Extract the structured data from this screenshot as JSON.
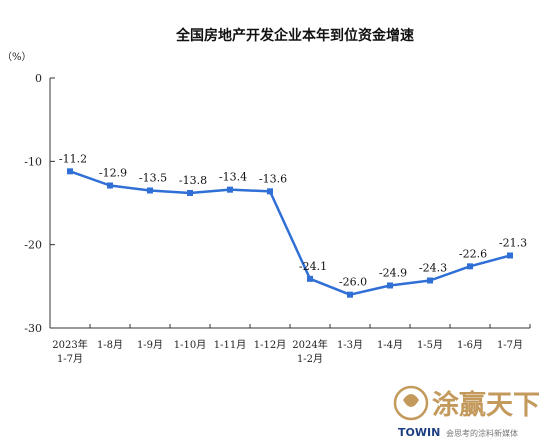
{
  "chart_data": {
    "type": "line",
    "title": "全国房地产开发企业本年到位资金增速",
    "yunit": "（%）",
    "ylim": [
      -30,
      0
    ],
    "yticks": [
      "0",
      "-10",
      "-20",
      "-30"
    ],
    "ytick_values": [
      0,
      -10,
      -20,
      -30
    ],
    "grid": false,
    "categories": [
      [
        "2023年",
        "1-7月"
      ],
      [
        "1-8月"
      ],
      [
        "1-9月"
      ],
      [
        "1-10月"
      ],
      [
        "1-11月"
      ],
      [
        "1-12月"
      ],
      [
        "2024年",
        "1-2月"
      ],
      [
        "1-3月"
      ],
      [
        "1-4月"
      ],
      [
        "1-5月"
      ],
      [
        "1-6月"
      ],
      [
        "1-7月"
      ]
    ],
    "series": [
      {
        "values": [
          -11.2,
          -12.9,
          -13.5,
          -13.8,
          -13.4,
          -13.6,
          -24.1,
          -26.0,
          -24.9,
          -24.3,
          -22.6,
          -21.3
        ],
        "labels": [
          "-11.2",
          "-12.9",
          "-13.5",
          "-13.8",
          "-13.4",
          "-13.6",
          "-24.1",
          "-26.0",
          "-24.9",
          "-24.3",
          "-22.6",
          "-21.3"
        ],
        "color": "#2f6fd6"
      }
    ]
  },
  "watermark": {
    "brand": "涂赢天下",
    "sub_en": "TOWIN",
    "sub_cn": "会思考的涂料新媒体",
    "icon": "towin-logo-icon",
    "color": "#c49a5c"
  }
}
